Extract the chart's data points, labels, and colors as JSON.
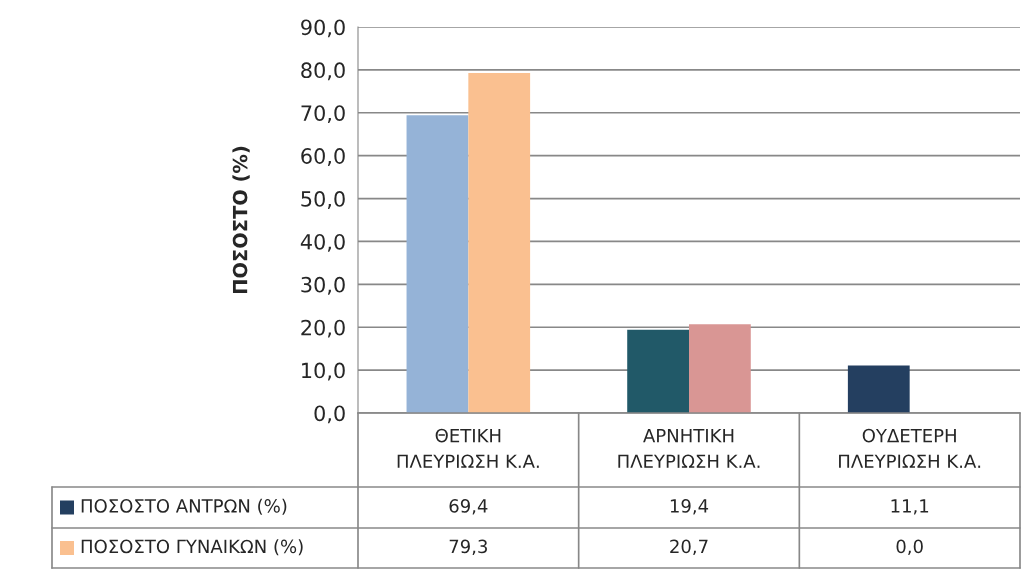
{
  "chart_data": {
    "type": "bar",
    "ylabel": "ΠΟΣΟΣΤΟ (%)",
    "categories": [
      "ΘΕΤΙΚΗ ΠΛΕΥΡΙΩΣΗ Κ.Α.",
      "ΑΡΝΗΤΙΚΗ ΠΛΕΥΡΙΩΣΗ Κ.Α.",
      "ΟΥΔΕΤΕΡΗ ΠΛΕΥΡΙΩΣΗ Κ.Α."
    ],
    "series": [
      {
        "name": "ΠΟΣΟΣΤΟ ΑΝΤΡΩΝ (%)",
        "color": "#243f60",
        "colors": [
          "#95b3d7",
          "#215968",
          "#243f60"
        ],
        "values": [
          69.4,
          19.4,
          11.1
        ],
        "value_labels": [
          "69,4",
          "19,4",
          "11,1"
        ]
      },
      {
        "name": "ΠΟΣΟΣΤΟ ΓΥΝΑΙΚΩΝ (%)",
        "color": "#fac090",
        "colors": [
          "#fac090",
          "#d99694",
          "#fac090"
        ],
        "values": [
          79.3,
          20.7,
          0.0
        ],
        "value_labels": [
          "79,3",
          "20,7",
          "0,0"
        ]
      }
    ],
    "ylim": [
      0,
      90
    ],
    "yticks": [
      {
        "value": 0,
        "label": "0,0"
      },
      {
        "value": 10,
        "label": "10,0"
      },
      {
        "value": 20,
        "label": "20,0"
      },
      {
        "value": 30,
        "label": "30,0"
      },
      {
        "value": 40,
        "label": "40,0"
      },
      {
        "value": 50,
        "label": "50,0"
      },
      {
        "value": 60,
        "label": "60,0"
      },
      {
        "value": 70,
        "label": "70,0"
      },
      {
        "value": 80,
        "label": "80,0"
      },
      {
        "value": 90,
        "label": "90,0"
      }
    ],
    "grid": "y",
    "legend": "bottom"
  }
}
